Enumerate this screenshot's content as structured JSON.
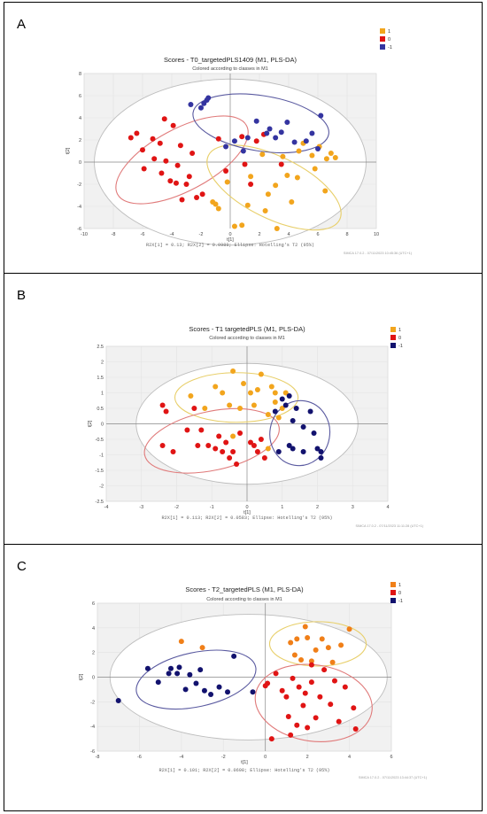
{
  "chart_data": [
    {
      "panel": "A",
      "type": "scatter",
      "title": "Scores - T0_targetedPLS1409 (M1, PLS-DA)",
      "subtitle": "Colored according to classes in M1",
      "xlabel": "t[1]",
      "ylabel": "t[2]",
      "xlim": [
        -10,
        10
      ],
      "ylim": [
        -6,
        8
      ],
      "xticks": [
        -10,
        -8,
        -6,
        -4,
        -2,
        0,
        2,
        4,
        6,
        8,
        10
      ],
      "yticks": [
        -6,
        -4,
        -2,
        0,
        2,
        4,
        6,
        8
      ],
      "footer": "R2X[1] = 0.13; R2X[2] = 0.0989; Ellipse: Hotelling's T2 (95%)",
      "watermark": "SIMCA 17.0.2 - 07/11/2023 10:45:36 (UTC+1)",
      "legend": [
        "1",
        "0",
        "-1"
      ],
      "hotelling": {
        "cx": 0,
        "cy": 0,
        "rx": 9.3,
        "ry": 7.5
      },
      "series": [
        {
          "name": "1",
          "color": "#f2a51d",
          "points": [
            [
              -1.2,
              -3.6
            ],
            [
              -1.0,
              -3.8
            ],
            [
              -0.8,
              -4.2
            ],
            [
              -0.2,
              -1.8
            ],
            [
              0.3,
              -5.8
            ],
            [
              0.8,
              -5.7
            ],
            [
              1.2,
              -3.9
            ],
            [
              1.4,
              -1.3
            ],
            [
              2.2,
              0.7
            ],
            [
              2.4,
              -4.4
            ],
            [
              2.6,
              -2.9
            ],
            [
              3.1,
              -2.1
            ],
            [
              3.2,
              -6.0
            ],
            [
              3.6,
              0.5
            ],
            [
              3.9,
              -1.2
            ],
            [
              4.2,
              -3.6
            ],
            [
              4.6,
              -1.4
            ],
            [
              4.7,
              1.0
            ],
            [
              5.0,
              1.7
            ],
            [
              5.6,
              0.6
            ],
            [
              5.8,
              -0.6
            ],
            [
              6.1,
              1.4
            ],
            [
              6.5,
              -2.6
            ],
            [
              6.6,
              0.3
            ],
            [
              6.9,
              0.8
            ],
            [
              7.2,
              0.4
            ]
          ]
        },
        {
          "name": "0",
          "color": "#e01414",
          "points": [
            [
              -6.8,
              2.2
            ],
            [
              -6.4,
              2.6
            ],
            [
              -6.0,
              1.1
            ],
            [
              -5.9,
              -0.6
            ],
            [
              -5.3,
              2.1
            ],
            [
              -5.2,
              0.3
            ],
            [
              -4.8,
              1.7
            ],
            [
              -4.7,
              -1.0
            ],
            [
              -4.5,
              3.9
            ],
            [
              -4.4,
              0.1
            ],
            [
              -4.1,
              -1.7
            ],
            [
              -3.9,
              3.3
            ],
            [
              -3.7,
              -1.9
            ],
            [
              -3.6,
              -0.3
            ],
            [
              -3.4,
              1.5
            ],
            [
              -3.3,
              -3.4
            ],
            [
              -3.0,
              -2.0
            ],
            [
              -2.8,
              -1.3
            ],
            [
              -2.6,
              0.8
            ],
            [
              -2.3,
              -3.2
            ],
            [
              -1.9,
              -2.9
            ],
            [
              -0.8,
              2.1
            ],
            [
              -0.3,
              -0.8
            ],
            [
              0.8,
              2.3
            ],
            [
              1.0,
              -0.2
            ],
            [
              1.4,
              -2.0
            ],
            [
              1.8,
              1.9
            ],
            [
              2.3,
              2.5
            ],
            [
              3.5,
              -0.2
            ]
          ]
        },
        {
          "name": "-1",
          "color": "#3434a0",
          "points": [
            [
              -2.7,
              5.2
            ],
            [
              -2.0,
              4.9
            ],
            [
              -1.8,
              5.3
            ],
            [
              -1.6,
              5.6
            ],
            [
              -1.5,
              5.8
            ],
            [
              -0.3,
              1.4
            ],
            [
              0.3,
              1.9
            ],
            [
              0.9,
              1.0
            ],
            [
              1.2,
              2.2
            ],
            [
              1.8,
              3.7
            ],
            [
              2.5,
              2.6
            ],
            [
              2.7,
              3.0
            ],
            [
              3.1,
              2.2
            ],
            [
              3.5,
              2.7
            ],
            [
              3.9,
              3.6
            ],
            [
              4.4,
              1.8
            ],
            [
              5.2,
              1.9
            ],
            [
              5.6,
              2.6
            ],
            [
              6.0,
              1.2
            ],
            [
              6.2,
              4.2
            ]
          ]
        }
      ],
      "class_ellipses": [
        {
          "class": "0",
          "color": "#e07a7a",
          "cx": -3.3,
          "cy": 0.2,
          "rx": 5.0,
          "ry": 2.8,
          "angle": -28
        },
        {
          "class": "1",
          "color": "#e8cf6a",
          "cx": 3.0,
          "cy": -2.3,
          "rx": 5.0,
          "ry": 2.8,
          "angle": 26
        },
        {
          "class": "-1",
          "color": "#5a5aa0",
          "cx": 2.1,
          "cy": 3.5,
          "rx": 4.7,
          "ry": 2.5,
          "angle": 9
        }
      ]
    },
    {
      "panel": "B",
      "type": "scatter",
      "title": "Scores - T1 targetedPLS (M1, PLS-DA)",
      "subtitle": "Colored according to classes in M1",
      "xlabel": "t[1]",
      "ylabel": "t[2]",
      "xlim": [
        -4,
        4
      ],
      "ylim": [
        -2.5,
        2.5
      ],
      "xticks": [
        -4,
        -3,
        -2,
        -1,
        0,
        1,
        2,
        3,
        4
      ],
      "yticks": [
        -2.5,
        -2,
        -1.5,
        -1,
        -0.5,
        0,
        0.5,
        1,
        1.5,
        2,
        2.5
      ],
      "footer": "R2X[1] = 0.113; R2X[2] = 0.0583; Ellipse: Hotelling's T2 (95%)",
      "watermark": "SIMCA 17.0.2 - 07/11/2023 11:11:28 (UTC+1)",
      "legend": [
        "1",
        "0",
        "-1"
      ],
      "hotelling": {
        "cx": 0,
        "cy": 0,
        "rx": 3.15,
        "ry": 1.95
      },
      "series": [
        {
          "name": "1",
          "color": "#f2a51d",
          "points": [
            [
              -1.6,
              0.9
            ],
            [
              -1.2,
              0.5
            ],
            [
              -0.9,
              1.2
            ],
            [
              -0.7,
              1.0
            ],
            [
              -0.5,
              0.6
            ],
            [
              -0.4,
              1.7
            ],
            [
              -0.2,
              0.5
            ],
            [
              -0.1,
              1.3
            ],
            [
              0.1,
              1.0
            ],
            [
              0.2,
              0.6
            ],
            [
              0.3,
              1.1
            ],
            [
              0.4,
              1.6
            ],
            [
              0.6,
              0.3
            ],
            [
              0.7,
              1.2
            ],
            [
              0.8,
              1.0
            ],
            [
              0.9,
              0.2
            ],
            [
              1.0,
              0.5
            ],
            [
              1.1,
              1.0
            ],
            [
              0.6,
              -0.8
            ],
            [
              -0.4,
              -0.4
            ],
            [
              0.8,
              0.7
            ]
          ]
        },
        {
          "name": "0",
          "color": "#e01414",
          "points": [
            [
              -2.3,
              0.4
            ],
            [
              -2.4,
              0.6
            ],
            [
              -2.1,
              -0.9
            ],
            [
              -2.4,
              -0.7
            ],
            [
              -1.7,
              -0.2
            ],
            [
              -1.4,
              -0.7
            ],
            [
              -1.3,
              -0.2
            ],
            [
              -1.1,
              -0.7
            ],
            [
              -0.9,
              -0.8
            ],
            [
              -0.8,
              -0.4
            ],
            [
              -0.7,
              -0.9
            ],
            [
              -0.6,
              -0.6
            ],
            [
              -0.5,
              -1.1
            ],
            [
              -0.4,
              -0.9
            ],
            [
              -0.3,
              -1.3
            ],
            [
              -0.2,
              -0.3
            ],
            [
              0.1,
              -0.6
            ],
            [
              0.2,
              -0.7
            ],
            [
              0.4,
              -0.5
            ],
            [
              0.5,
              -1.1
            ],
            [
              0.3,
              -0.9
            ],
            [
              -1.5,
              0.5
            ]
          ]
        },
        {
          "name": "-1",
          "color": "#12126e",
          "points": [
            [
              0.8,
              0.4
            ],
            [
              1.0,
              0.8
            ],
            [
              1.1,
              0.6
            ],
            [
              1.2,
              0.9
            ],
            [
              1.3,
              0.1
            ],
            [
              1.4,
              0.5
            ],
            [
              1.6,
              -0.1
            ],
            [
              1.8,
              0.4
            ],
            [
              0.9,
              -0.9
            ],
            [
              1.2,
              -0.7
            ],
            [
              1.6,
              -0.9
            ],
            [
              1.9,
              -0.3
            ],
            [
              2.0,
              -0.8
            ],
            [
              2.1,
              -0.9
            ],
            [
              2.1,
              -1.1
            ],
            [
              1.3,
              -0.8
            ]
          ]
        }
      ],
      "class_ellipses": [
        {
          "class": "1",
          "color": "#e8cf6a",
          "cx": -0.3,
          "cy": 0.85,
          "rx": 1.75,
          "ry": 0.8,
          "angle": 0
        },
        {
          "class": "0",
          "color": "#e07a7a",
          "cx": -1.0,
          "cy": -0.55,
          "rx": 1.95,
          "ry": 0.95,
          "angle": -12
        },
        {
          "class": "-1",
          "color": "#5a5aa0",
          "cx": 1.5,
          "cy": -0.3,
          "rx": 0.85,
          "ry": 1.05,
          "angle": 10
        }
      ]
    },
    {
      "panel": "C",
      "type": "scatter",
      "title": "Scores - T2_targetedPLS (M1, PLS-DA)",
      "subtitle": "Colored according to classes in M1",
      "xlabel": "t[1]",
      "ylabel": "t[2]",
      "xlim": [
        -8,
        6
      ],
      "ylim": [
        -6,
        6
      ],
      "xticks": [
        -8,
        -6,
        -4,
        -2,
        0,
        2,
        4,
        6
      ],
      "yticks": [
        -6,
        -4,
        -2,
        0,
        2,
        4,
        6
      ],
      "footer": "R2X[1] = 0.101; R2X[2] = 0.0698; Ellipse: Hotelling's T2 (95%)",
      "watermark": "SIMCA 17.0.2 - 07/11/2023 13:44:37 (UTC+1)",
      "legend": [
        "1",
        "0",
        "-1"
      ],
      "hotelling": {
        "cx": -0.8,
        "cy": 0,
        "rx": 6.6,
        "ry": 5.1
      },
      "series": [
        {
          "name": "1",
          "color": "#f07f18",
          "points": [
            [
              -4.0,
              2.9
            ],
            [
              -3.0,
              2.4
            ],
            [
              1.2,
              2.8
            ],
            [
              1.4,
              1.8
            ],
            [
              1.5,
              3.1
            ],
            [
              1.7,
              1.4
            ],
            [
              1.9,
              4.1
            ],
            [
              2.0,
              3.2
            ],
            [
              2.2,
              1.3
            ],
            [
              2.4,
              2.2
            ],
            [
              2.7,
              3.1
            ],
            [
              3.0,
              2.4
            ],
            [
              3.2,
              1.2
            ],
            [
              3.6,
              2.6
            ],
            [
              4.0,
              3.9
            ]
          ]
        },
        {
          "name": "0",
          "color": "#e01414",
          "points": [
            [
              0.0,
              -0.7
            ],
            [
              0.1,
              -0.5
            ],
            [
              0.3,
              -5.0
            ],
            [
              0.5,
              0.3
            ],
            [
              0.8,
              -1.1
            ],
            [
              1.0,
              -1.6
            ],
            [
              1.1,
              -3.2
            ],
            [
              1.3,
              -0.1
            ],
            [
              1.5,
              -3.9
            ],
            [
              1.6,
              -0.8
            ],
            [
              1.8,
              -2.3
            ],
            [
              1.9,
              -1.3
            ],
            [
              2.0,
              -4.1
            ],
            [
              2.2,
              -0.4
            ],
            [
              2.4,
              -3.3
            ],
            [
              2.6,
              -1.6
            ],
            [
              2.8,
              0.6
            ],
            [
              3.1,
              -2.2
            ],
            [
              3.3,
              -0.3
            ],
            [
              3.5,
              -3.6
            ],
            [
              3.8,
              -0.8
            ],
            [
              4.2,
              -2.5
            ],
            [
              4.3,
              -4.2
            ],
            [
              2.2,
              1.0
            ],
            [
              1.2,
              -4.7
            ]
          ]
        },
        {
          "name": "-1",
          "color": "#12126e",
          "points": [
            [
              -7.0,
              -1.9
            ],
            [
              -5.6,
              0.7
            ],
            [
              -5.1,
              -0.4
            ],
            [
              -4.6,
              0.3
            ],
            [
              -4.5,
              0.7
            ],
            [
              -4.2,
              0.3
            ],
            [
              -4.1,
              0.8
            ],
            [
              -3.8,
              -1.0
            ],
            [
              -3.6,
              0.2
            ],
            [
              -3.3,
              -0.5
            ],
            [
              -3.1,
              0.6
            ],
            [
              -2.9,
              -1.1
            ],
            [
              -2.6,
              -1.4
            ],
            [
              -2.2,
              -0.8
            ],
            [
              -1.8,
              -1.2
            ],
            [
              -1.5,
              1.7
            ],
            [
              -0.6,
              -1.2
            ]
          ]
        }
      ],
      "class_ellipses": [
        {
          "class": "-1",
          "color": "#5a5aa0",
          "cx": -3.3,
          "cy": -0.2,
          "rx": 2.9,
          "ry": 2.2,
          "angle": -12
        },
        {
          "class": "1",
          "color": "#e8cf6a",
          "cx": 2.5,
          "cy": 2.7,
          "rx": 2.3,
          "ry": 1.8,
          "angle": 0
        },
        {
          "class": "0",
          "color": "#e07a7a",
          "cx": 2.3,
          "cy": -2.1,
          "rx": 2.8,
          "ry": 3.1,
          "angle": 8
        }
      ]
    }
  ]
}
